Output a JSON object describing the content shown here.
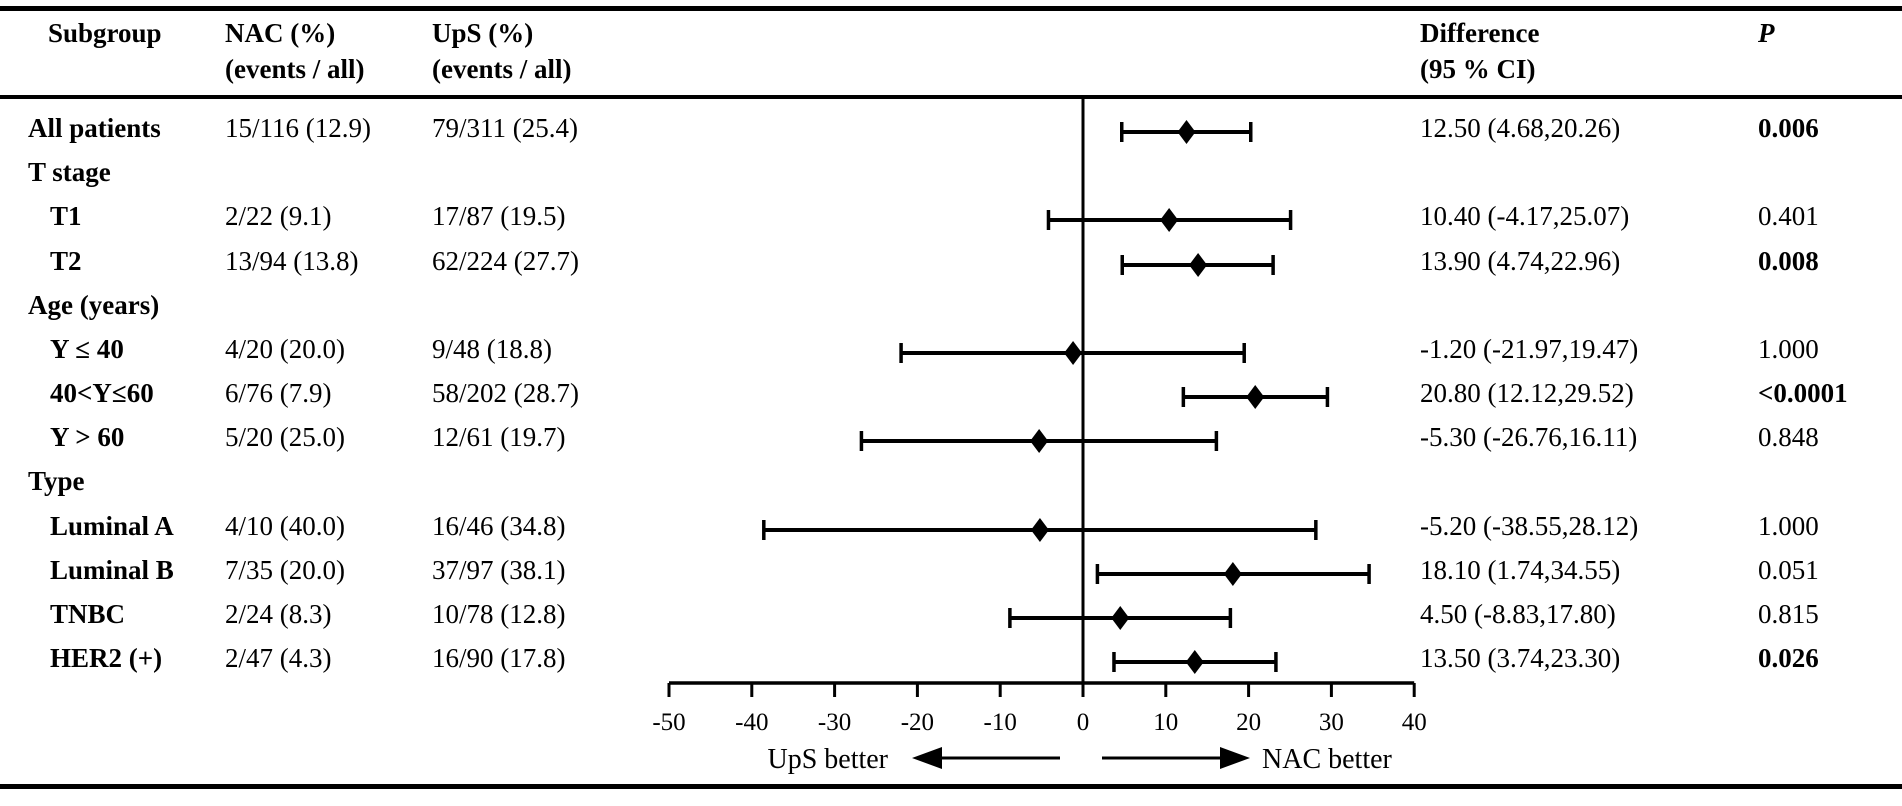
{
  "figure": {
    "headers": {
      "subgroup": "Subgroup",
      "nac_line1": "NAC (%)",
      "nac_line2": "(events / all)",
      "ups_line1": "UpS (%)",
      "ups_line2": "(events / all)",
      "diff_line1": "Difference",
      "diff_line2": "(95 % CI)",
      "p": "P"
    }
  },
  "chart_data": {
    "type": "scatter",
    "subtype": "forest-plot",
    "title": "",
    "xlabel": "",
    "xlim": [
      -50,
      40
    ],
    "zero_line": 0,
    "grid": false,
    "tick_values": [
      -50,
      -40,
      -30,
      -20,
      -10,
      0,
      10,
      20,
      30,
      40
    ],
    "tick_labels": [
      "-50",
      "-40",
      "-30",
      "-20",
      "-10",
      "0",
      "10",
      "20",
      "30",
      "40"
    ],
    "left_arrow_label": "UpS better",
    "right_arrow_label": "NAC better",
    "rows": [
      {
        "label": "All patients",
        "indent": false,
        "nac": "15/116 (12.9)",
        "ups": "79/311 (25.4)",
        "diff_text": "12.50 (4.68,20.26)",
        "p": "0.006",
        "p_bold": true,
        "has_plot": true,
        "est": 12.5,
        "lo": 4.68,
        "hi": 20.26
      },
      {
        "label": "T stage",
        "indent": false,
        "nac": "",
        "ups": "",
        "diff_text": "",
        "p": "",
        "p_bold": false,
        "has_plot": false,
        "est": null,
        "lo": null,
        "hi": null
      },
      {
        "label": "T1",
        "indent": true,
        "nac": "2/22 (9.1)",
        "ups": "17/87 (19.5)",
        "diff_text": "10.40 (-4.17,25.07)",
        "p": "0.401",
        "p_bold": false,
        "has_plot": true,
        "est": 10.4,
        "lo": -4.17,
        "hi": 25.07
      },
      {
        "label": "T2",
        "indent": true,
        "nac": "13/94 (13.8)",
        "ups": "62/224 (27.7)",
        "diff_text": "13.90 (4.74,22.96)",
        "p": "0.008",
        "p_bold": true,
        "has_plot": true,
        "est": 13.9,
        "lo": 4.74,
        "hi": 22.96
      },
      {
        "label": "Age (years)",
        "indent": false,
        "nac": "",
        "ups": "",
        "diff_text": "",
        "p": "",
        "p_bold": false,
        "has_plot": false,
        "est": null,
        "lo": null,
        "hi": null
      },
      {
        "label": "Y ≤ 40",
        "indent": true,
        "nac": "4/20 (20.0)",
        "ups": "9/48 (18.8)",
        "diff_text": "-1.20 (-21.97,19.47)",
        "p": "1.000",
        "p_bold": false,
        "has_plot": true,
        "est": -1.2,
        "lo": -21.97,
        "hi": 19.47
      },
      {
        "label": "40<Y≤60",
        "indent": true,
        "nac": "6/76 (7.9)",
        "ups": "58/202 (28.7)",
        "diff_text": "20.80 (12.12,29.52)",
        "p": "<0.0001",
        "p_bold": true,
        "has_plot": true,
        "est": 20.8,
        "lo": 12.12,
        "hi": 29.52
      },
      {
        "label": "Y > 60",
        "indent": true,
        "nac": "5/20 (25.0)",
        "ups": "12/61 (19.7)",
        "diff_text": "-5.30 (-26.76,16.11)",
        "p": "0.848",
        "p_bold": false,
        "has_plot": true,
        "est": -5.3,
        "lo": -26.76,
        "hi": 16.11
      },
      {
        "label": "Type",
        "indent": false,
        "nac": "",
        "ups": "",
        "diff_text": "",
        "p": "",
        "p_bold": false,
        "has_plot": false,
        "est": null,
        "lo": null,
        "hi": null
      },
      {
        "label": "Luminal A",
        "indent": true,
        "nac": "4/10 (40.0)",
        "ups": "16/46 (34.8)",
        "diff_text": "-5.20 (-38.55,28.12)",
        "p": "1.000",
        "p_bold": false,
        "has_plot": true,
        "est": -5.2,
        "lo": -38.55,
        "hi": 28.12
      },
      {
        "label": "Luminal B",
        "indent": true,
        "nac": "7/35 (20.0)",
        "ups": "37/97 (38.1)",
        "diff_text": "18.10 (1.74,34.55)",
        "p": "0.051",
        "p_bold": false,
        "has_plot": true,
        "est": 18.1,
        "lo": 1.74,
        "hi": 34.55
      },
      {
        "label": "TNBC",
        "indent": true,
        "nac": "2/24 (8.3)",
        "ups": "10/78 (12.8)",
        "diff_text": "4.50 (-8.83,17.80)",
        "p": "0.815",
        "p_bold": false,
        "has_plot": true,
        "est": 4.5,
        "lo": -8.83,
        "hi": 17.8
      },
      {
        "label": "HER2 (+)",
        "indent": true,
        "nac": "2/47 (4.3)",
        "ups": "16/90 (17.8)",
        "diff_text": "13.50 (3.74,23.30)",
        "p": "0.026",
        "p_bold": true,
        "has_plot": true,
        "est": 13.5,
        "lo": 3.74,
        "hi": 23.3
      }
    ],
    "colors": {
      "ink": "#000000",
      "background": "#ffffff"
    }
  }
}
